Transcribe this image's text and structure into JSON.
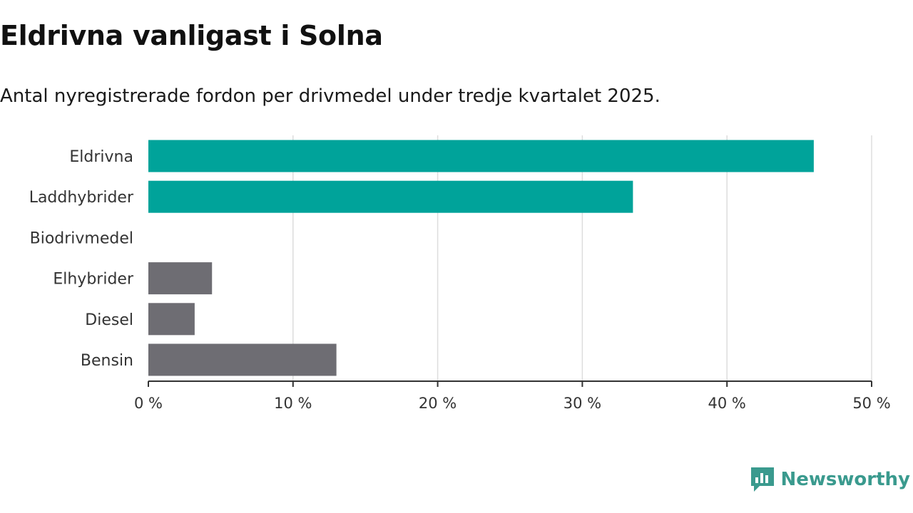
{
  "title": "Eldrivna vanligast i Solna",
  "subtitle": "Antal nyregistrerade fordon per drivmedel under tredje kvartalet 2025.",
  "brand": "Newsworthy",
  "colors": {
    "accent": "#00a39a",
    "neutral": "#6e6d73",
    "grid": "#dddddd",
    "axis": "#333333",
    "brand": "#3a9a8e"
  },
  "chart_data": {
    "type": "bar",
    "orientation": "horizontal",
    "categories": [
      "Eldrivna",
      "Laddhybrider",
      "Biodrivmedel",
      "Elhybrider",
      "Diesel",
      "Bensin"
    ],
    "values": [
      46.0,
      33.5,
      0,
      4.4,
      3.2,
      13.0
    ],
    "highlight": [
      true,
      true,
      false,
      false,
      false,
      false
    ],
    "xlim": [
      0,
      50
    ],
    "xticks": [
      0,
      10,
      20,
      30,
      40,
      50
    ],
    "tick_labels": [
      "0 %",
      "10 %",
      "20 %",
      "30 %",
      "40 %",
      "50 %"
    ],
    "xlabel": "",
    "ylabel": "",
    "grid": true
  }
}
